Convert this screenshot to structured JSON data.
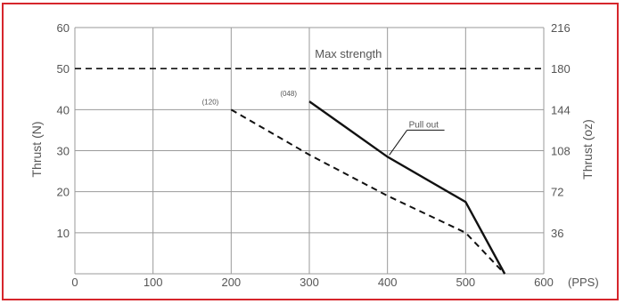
{
  "colors": {
    "border": "#d6262c",
    "grid": "#9a9a9a",
    "line": "#111111",
    "text": "#555555"
  },
  "chart_data": {
    "type": "line",
    "title": "",
    "xlabel": "(PPS)",
    "ylabel": "Thrust (N)",
    "y2label": "Thrust (oz)",
    "xlim": [
      0,
      600
    ],
    "ylim": [
      0,
      60
    ],
    "x_ticks": [
      "0",
      "100",
      "200",
      "300",
      "400",
      "500",
      "600"
    ],
    "y_ticks": [
      "10",
      "20",
      "30",
      "40",
      "50",
      "60"
    ],
    "y2_ticks": [
      "36",
      "72",
      "108",
      "144",
      "180",
      "216"
    ],
    "grid": true,
    "series": [
      {
        "name": "Pull out",
        "style": "solid",
        "points": [
          [
            300,
            42
          ],
          [
            400,
            28.5
          ],
          [
            500,
            17.5
          ],
          [
            550,
            0
          ]
        ]
      },
      {
        "name": "",
        "style": "dashed",
        "points": [
          [
            200,
            40
          ],
          [
            300,
            29
          ],
          [
            400,
            19
          ],
          [
            500,
            10
          ],
          [
            550,
            0
          ]
        ]
      }
    ],
    "reference_lines": [
      {
        "label": "Max strength",
        "y": 50,
        "style": "dashed"
      }
    ],
    "annotations": [
      {
        "text": "(120)",
        "x": 200,
        "y": 40
      },
      {
        "text": "(048)",
        "x": 300,
        "y": 42
      }
    ]
  }
}
